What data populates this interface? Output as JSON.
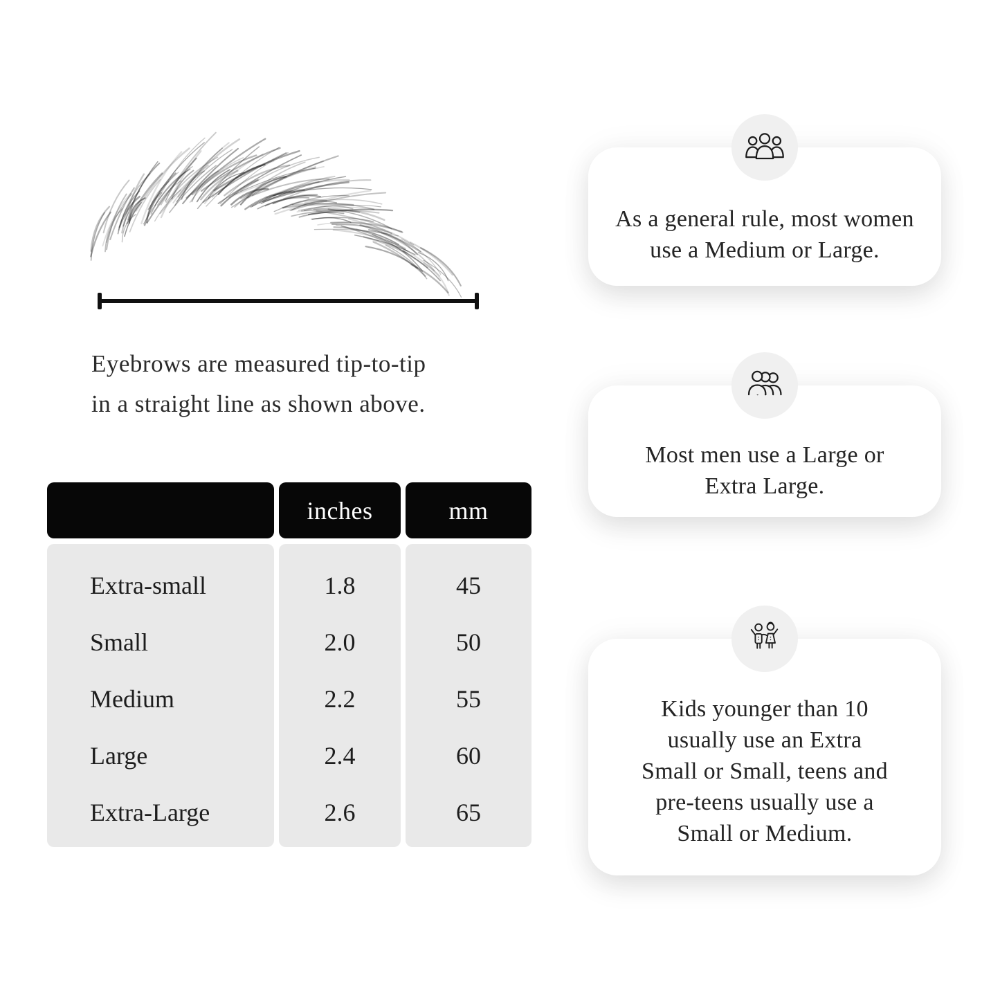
{
  "colors": {
    "background": "#ffffff",
    "table_header_bg": "#070707",
    "table_header_text": "#ffffff",
    "table_body_bg": "#e9e9e9",
    "card_bg": "#ffffff",
    "badge_bg": "#f0f0f0",
    "ink": "#1f1f1f"
  },
  "measurement": {
    "caption_line1": "Eyebrows are measured tip-to-tip",
    "caption_line2": "in a straight line as shown above."
  },
  "size_table": {
    "columns": [
      "",
      "inches",
      "mm"
    ],
    "rows": [
      {
        "label": "Extra-small",
        "inches": "1.8",
        "mm": "45"
      },
      {
        "label": "Small",
        "inches": "2.0",
        "mm": "50"
      },
      {
        "label": "Medium",
        "inches": "2.2",
        "mm": "55"
      },
      {
        "label": "Large",
        "inches": "2.4",
        "mm": "60"
      },
      {
        "label": "Extra-Large",
        "inches": "2.6",
        "mm": "65"
      }
    ]
  },
  "info_cards": [
    {
      "icon": "women-group-icon",
      "lines": [
        "As a general rule, most women",
        "use a Medium or Large."
      ]
    },
    {
      "icon": "men-group-icon",
      "lines": [
        "Most men use a Large or",
        "Extra Large."
      ]
    },
    {
      "icon": "kids-icon",
      "lines": [
        "Kids younger than 10",
        "usually use an Extra",
        "Small or Small, teens and",
        "pre-teens usually use a",
        "Small or Medium."
      ]
    }
  ]
}
